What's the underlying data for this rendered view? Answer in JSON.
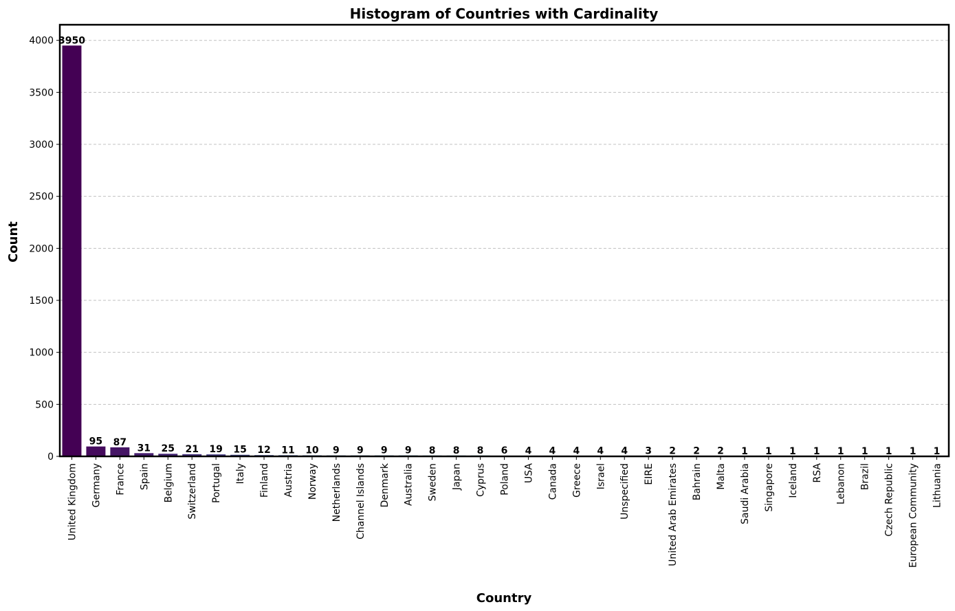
{
  "chart_data": {
    "type": "bar",
    "title": "Histogram of Countries with Cardinality",
    "xlabel": "Country",
    "ylabel": "Count",
    "categories": [
      "United Kingdom",
      "Germany",
      "France",
      "Spain",
      "Belgium",
      "Switzerland",
      "Portugal",
      "Italy",
      "Finland",
      "Austria",
      "Norway",
      "Netherlands",
      "Channel Islands",
      "Denmark",
      "Australia",
      "Sweden",
      "Japan",
      "Cyprus",
      "Poland",
      "USA",
      "Canada",
      "Greece",
      "Israel",
      "Unspecified",
      "EIRE",
      "United Arab Emirates",
      "Bahrain",
      "Malta",
      "Saudi Arabia",
      "Singapore",
      "Iceland",
      "RSA",
      "Lebanon",
      "Brazil",
      "Czech Republic",
      "European Community",
      "Lithuania"
    ],
    "values": [
      3950,
      95,
      87,
      31,
      25,
      21,
      19,
      15,
      12,
      11,
      10,
      9,
      9,
      9,
      9,
      8,
      8,
      8,
      6,
      4,
      4,
      4,
      4,
      4,
      3,
      2,
      2,
      2,
      1,
      1,
      1,
      1,
      1,
      1,
      1,
      1,
      1
    ],
    "yticks": [
      0,
      500,
      1000,
      1500,
      2000,
      2500,
      3000,
      3500,
      4000
    ],
    "ylim": [
      0,
      4150
    ],
    "grid": "y-dashed",
    "colormap": [
      "#440154",
      "#472d7b",
      "#3b528b",
      "#2c728e",
      "#21918c",
      "#28ae80",
      "#5ec962",
      "#addc30",
      "#fde725"
    ]
  }
}
